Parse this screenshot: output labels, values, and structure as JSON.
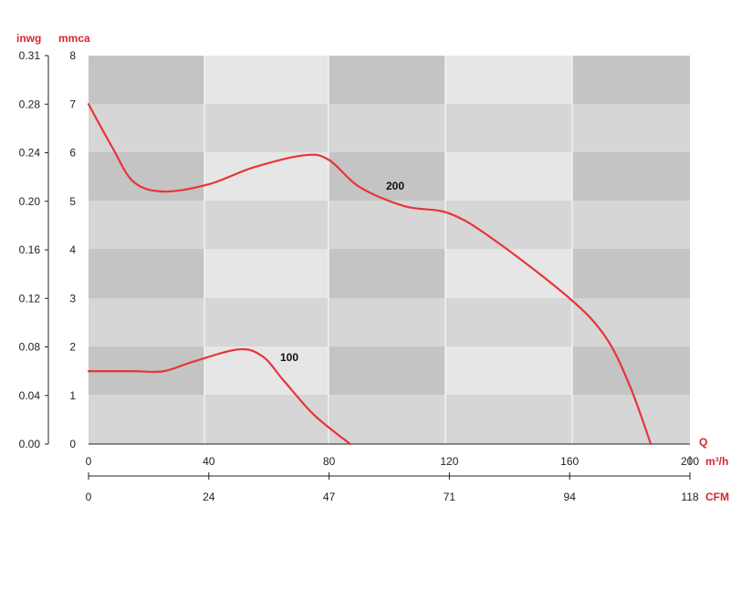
{
  "chart_data": {
    "type": "line",
    "title": "",
    "x_axis_m3h": {
      "label": "Q",
      "unit": "m³/h",
      "ticks": [
        0,
        40,
        80,
        120,
        160,
        200
      ],
      "range": [
        0,
        200
      ]
    },
    "x_axis_cfm": {
      "unit": "CFM",
      "ticks": [
        "0",
        "24",
        "47",
        "71",
        "94",
        "118"
      ]
    },
    "y_axis_mmca": {
      "unit": "mmca",
      "ticks": [
        "0",
        "1",
        "2",
        "3",
        "4",
        "5",
        "6",
        "7",
        "8"
      ],
      "range": [
        0,
        8
      ]
    },
    "y_axis_inwg": {
      "unit": "inwg",
      "ticks": [
        "0.00",
        "0.04",
        "0.08",
        "0.12",
        "0.16",
        "0.20",
        "0.24",
        "0.28",
        "0.31"
      ]
    },
    "series": [
      {
        "name": "200",
        "color": "#e8343a",
        "points": [
          [
            0,
            7.0
          ],
          [
            8,
            6.1
          ],
          [
            15,
            5.4
          ],
          [
            25,
            5.2
          ],
          [
            40,
            5.35
          ],
          [
            55,
            5.7
          ],
          [
            72,
            5.95
          ],
          [
            80,
            5.85
          ],
          [
            90,
            5.3
          ],
          [
            105,
            4.9
          ],
          [
            120,
            4.75
          ],
          [
            135,
            4.2
          ],
          [
            160,
            3.0
          ],
          [
            172,
            2.2
          ],
          [
            180,
            1.2
          ],
          [
            187,
            0.0
          ]
        ]
      },
      {
        "name": "100",
        "color": "#e8343a",
        "points": [
          [
            0,
            1.5
          ],
          [
            15,
            1.5
          ],
          [
            25,
            1.5
          ],
          [
            35,
            1.7
          ],
          [
            50,
            1.95
          ],
          [
            58,
            1.8
          ],
          [
            65,
            1.3
          ],
          [
            75,
            0.6
          ],
          [
            87,
            0.0
          ]
        ]
      }
    ],
    "grid": true,
    "background_colors": {
      "dark": "#c4c4c4",
      "mid": "#d6d6d6",
      "light": "#e6e6e6"
    }
  }
}
